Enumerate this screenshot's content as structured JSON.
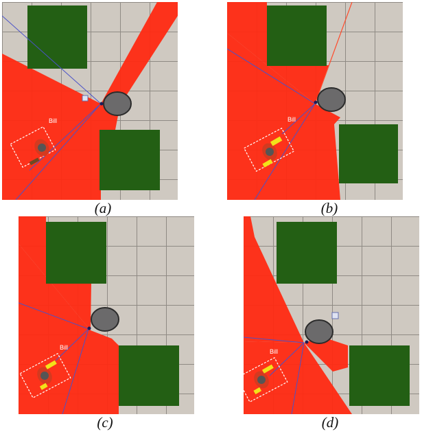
{
  "figure": {
    "panels": [
      {
        "id": "a",
        "caption": "(a)",
        "person_label": "Bill"
      },
      {
        "id": "b",
        "caption": "(b)",
        "person_label": "Bill"
      },
      {
        "id": "c",
        "caption": "(c)",
        "person_label": "Bill"
      },
      {
        "id": "d",
        "caption": "(d)",
        "person_label": "Bill"
      }
    ]
  },
  "colors": {
    "fov_red": "#ff2a12",
    "obstacle_green": "#235f14",
    "robot_gray": "#6b6a6b",
    "ray_blue": "#4a52c8",
    "selection_box": "#ffffff",
    "person_shirt": "#d43a20",
    "person_vest": "#f2e21a"
  },
  "icons": {
    "robot": "robot-base-icon",
    "person": "person-topdown-icon",
    "goal_marker": "goal-marker-icon"
  }
}
